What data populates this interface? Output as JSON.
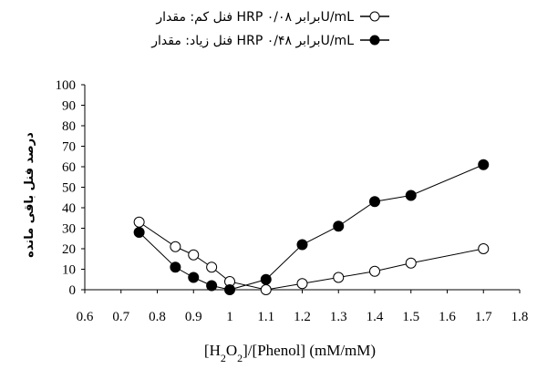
{
  "chart_data": {
    "type": "line",
    "xlabel": "[H2O2]/[Phenol] (mM/mM)",
    "ylabel": "درصد فنل باقی مانده",
    "xlim": [
      0.6,
      1.8
    ],
    "ylim": [
      0,
      100
    ],
    "x_ticks": [
      "0.6",
      "0.7",
      "0.8",
      "0.9",
      "1",
      "1.1",
      "1.2",
      "1.3",
      "1.4",
      "1.5",
      "1.6",
      "1.7",
      "1.8"
    ],
    "y_ticks": [
      "0",
      "10",
      "20",
      "30",
      "40",
      "50",
      "60",
      "70",
      "80",
      "90",
      "100"
    ],
    "legend_position": "top-right",
    "grid": false,
    "series": [
      {
        "name": "فنل کم: مقدار HRP برابر ۰/۰۸U/mL",
        "marker": "open-circle",
        "color": "#000000",
        "points": [
          {
            "x": 0.75,
            "y": 33
          },
          {
            "x": 0.85,
            "y": 21
          },
          {
            "x": 0.9,
            "y": 17
          },
          {
            "x": 0.95,
            "y": 11
          },
          {
            "x": 1.0,
            "y": 4
          },
          {
            "x": 1.1,
            "y": 0
          },
          {
            "x": 1.2,
            "y": 3
          },
          {
            "x": 1.3,
            "y": 6
          },
          {
            "x": 1.4,
            "y": 9
          },
          {
            "x": 1.5,
            "y": 13
          },
          {
            "x": 1.7,
            "y": 20
          }
        ]
      },
      {
        "name": "فنل زیاد: مقدار HRP برابر ۰/۴۸U/mL",
        "marker": "filled-circle",
        "color": "#000000",
        "points": [
          {
            "x": 0.75,
            "y": 28
          },
          {
            "x": 0.85,
            "y": 11
          },
          {
            "x": 0.9,
            "y": 6
          },
          {
            "x": 0.95,
            "y": 2
          },
          {
            "x": 1.0,
            "y": 0
          },
          {
            "x": 1.1,
            "y": 5
          },
          {
            "x": 1.2,
            "y": 22
          },
          {
            "x": 1.3,
            "y": 31
          },
          {
            "x": 1.4,
            "y": 43
          },
          {
            "x": 1.5,
            "y": 46
          },
          {
            "x": 1.7,
            "y": 61
          }
        ]
      }
    ]
  }
}
